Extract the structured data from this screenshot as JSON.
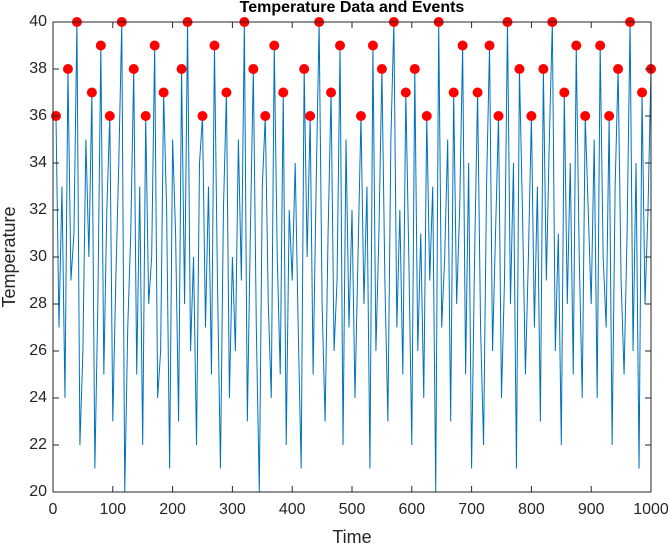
{
  "chart_data": {
    "type": "line",
    "title": "Temperature Data and Events",
    "xlabel": "Time",
    "ylabel": "Temperature",
    "xlim": [
      0,
      1000
    ],
    "xticks": [
      0,
      100,
      200,
      300,
      400,
      500,
      600,
      700,
      800,
      900,
      1000
    ],
    "ylim": [
      20,
      40
    ],
    "yticks": [
      20,
      22,
      24,
      26,
      28,
      30,
      32,
      34,
      36,
      38,
      40
    ],
    "x": [
      5,
      10,
      15,
      20,
      25,
      30,
      35,
      40,
      45,
      50,
      55,
      60,
      65,
      70,
      75,
      80,
      85,
      90,
      95,
      100,
      105,
      110,
      115,
      120,
      125,
      130,
      135,
      140,
      145,
      150,
      155,
      160,
      165,
      170,
      175,
      180,
      185,
      190,
      195,
      200,
      205,
      210,
      215,
      220,
      225,
      230,
      235,
      240,
      245,
      250,
      255,
      260,
      265,
      270,
      275,
      280,
      285,
      290,
      295,
      300,
      305,
      310,
      315,
      320,
      325,
      330,
      335,
      340,
      345,
      350,
      355,
      360,
      365,
      370,
      375,
      380,
      385,
      390,
      395,
      400,
      405,
      410,
      415,
      420,
      425,
      430,
      435,
      440,
      445,
      450,
      455,
      460,
      465,
      470,
      475,
      480,
      485,
      490,
      495,
      500,
      505,
      510,
      515,
      520,
      525,
      530,
      535,
      540,
      545,
      550,
      555,
      560,
      565,
      570,
      575,
      580,
      585,
      590,
      595,
      600,
      605,
      610,
      615,
      620,
      625,
      630,
      635,
      640,
      645,
      650,
      655,
      660,
      665,
      670,
      675,
      680,
      685,
      690,
      695,
      700,
      705,
      710,
      715,
      720,
      725,
      730,
      735,
      740,
      745,
      750,
      755,
      760,
      765,
      770,
      775,
      780,
      785,
      790,
      795,
      800,
      805,
      810,
      815,
      820,
      825,
      830,
      835,
      840,
      845,
      850,
      855,
      860,
      865,
      870,
      875,
      880,
      885,
      890,
      895,
      900,
      905,
      910,
      915,
      920,
      925,
      930,
      935,
      940,
      945,
      950,
      955,
      960,
      965,
      970,
      975,
      980,
      985,
      990,
      995,
      1000
    ],
    "series": [
      {
        "color": "#0072bd",
        "marker": "none",
        "values": [
          36,
          27,
          33,
          24,
          38,
          29,
          31,
          40,
          22,
          26,
          35,
          30,
          37,
          21,
          28,
          39,
          25,
          32,
          36,
          23,
          29,
          34,
          40,
          20,
          27,
          31,
          38,
          25,
          33,
          22,
          36,
          28,
          30,
          39,
          24,
          26,
          37,
          32,
          21,
          35,
          31,
          23,
          38,
          28,
          40,
          26,
          30,
          22,
          34,
          36,
          27,
          33,
          25,
          39,
          29,
          21,
          32,
          37,
          24,
          30,
          26,
          35,
          29,
          40,
          23,
          31,
          38,
          27,
          20,
          33,
          36,
          28,
          24,
          39,
          30,
          25,
          37,
          22,
          32,
          29,
          34,
          27,
          21,
          38,
          30,
          36,
          25,
          33,
          40,
          28,
          23,
          31,
          37,
          26,
          29,
          39,
          22,
          35,
          27,
          32,
          24,
          30,
          36,
          28,
          33,
          21,
          39,
          26,
          31,
          38,
          29,
          23,
          35,
          40,
          27,
          32,
          25,
          37,
          30,
          22,
          38,
          26,
          31,
          24,
          36,
          29,
          33,
          20,
          40,
          27,
          30,
          35,
          23,
          37,
          28,
          32,
          39,
          25,
          34,
          21,
          30,
          37,
          27,
          22,
          33,
          39,
          26,
          31,
          36,
          24,
          29,
          40,
          28,
          34,
          21,
          38,
          32,
          25,
          30,
          36,
          27,
          33,
          23,
          38,
          29,
          35,
          40,
          26,
          31,
          22,
          37,
          28,
          34,
          25,
          39,
          30,
          24,
          36,
          32,
          28,
          35,
          24,
          39,
          30,
          27,
          36,
          22,
          33,
          38,
          29,
          25,
          31,
          40,
          26,
          34,
          21,
          37,
          28,
          32,
          38
        ]
      },
      {
        "color": "#ff0000",
        "marker": "circle",
        "values": [
          36,
          null,
          null,
          null,
          38,
          null,
          null,
          40,
          null,
          null,
          null,
          null,
          37,
          null,
          null,
          39,
          null,
          null,
          36,
          null,
          null,
          null,
          40,
          null,
          null,
          null,
          38,
          null,
          null,
          null,
          36,
          null,
          null,
          39,
          null,
          null,
          37,
          null,
          null,
          null,
          null,
          null,
          38,
          null,
          40,
          null,
          null,
          null,
          null,
          36,
          null,
          null,
          null,
          39,
          null,
          null,
          null,
          37,
          null,
          null,
          null,
          null,
          null,
          40,
          null,
          null,
          38,
          null,
          null,
          null,
          36,
          null,
          null,
          39,
          null,
          null,
          37,
          null,
          null,
          null,
          null,
          null,
          null,
          38,
          null,
          36,
          null,
          null,
          40,
          null,
          null,
          null,
          37,
          null,
          null,
          39,
          null,
          null,
          null,
          null,
          null,
          null,
          36,
          null,
          null,
          null,
          39,
          null,
          null,
          38,
          null,
          null,
          null,
          40,
          null,
          null,
          null,
          37,
          null,
          null,
          38,
          null,
          null,
          null,
          36,
          null,
          null,
          null,
          40,
          null,
          null,
          null,
          null,
          37,
          null,
          null,
          39,
          null,
          null,
          null,
          null,
          37,
          null,
          null,
          null,
          39,
          null,
          null,
          36,
          null,
          null,
          40,
          null,
          null,
          null,
          38,
          null,
          null,
          null,
          36,
          null,
          null,
          null,
          38,
          null,
          null,
          40,
          null,
          null,
          null,
          37,
          null,
          null,
          null,
          39,
          null,
          null,
          36,
          null,
          null,
          null,
          null,
          39,
          null,
          null,
          36,
          null,
          null,
          38,
          null,
          null,
          null,
          40,
          null,
          null,
          null,
          37,
          null,
          null,
          38
        ]
      }
    ]
  }
}
